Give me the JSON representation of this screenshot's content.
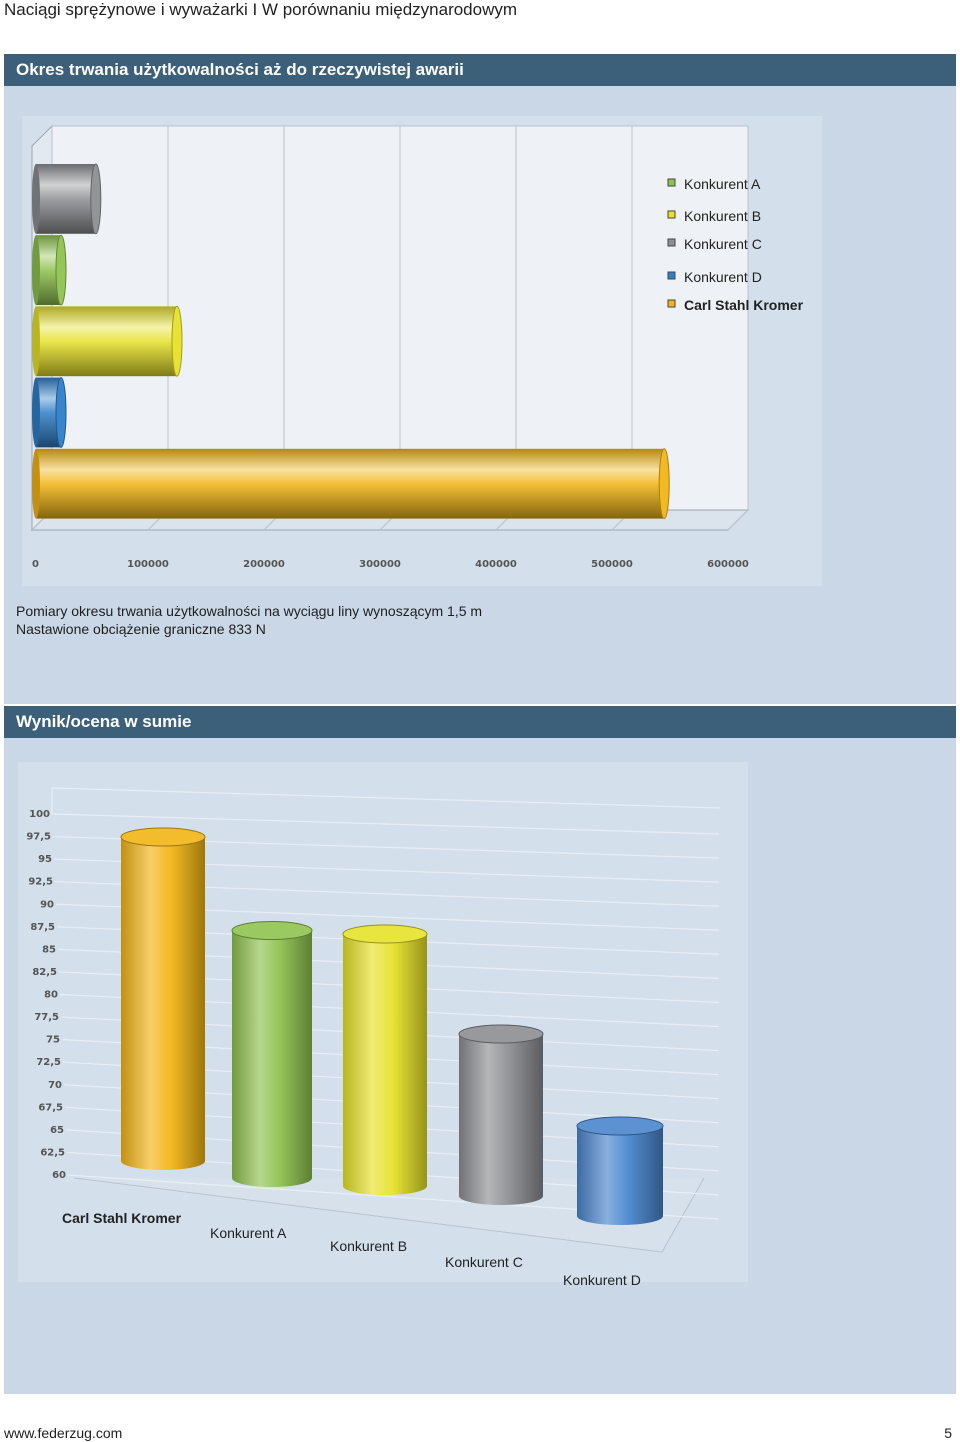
{
  "page": {
    "title": "Naciągi sprężynowe i wyważarki I W porównaniu międzynarodowym",
    "footer_url": "www.federzug.com",
    "page_number": "5"
  },
  "sections": [
    {
      "header": "Okres trwania użytkowalności aż do rzeczywistej awarii",
      "caption_lines": [
        "Pomiary okresu trwania użytkowalności na wyciągu liny wynoszącym 1,5 m",
        "Nastawione obciążenie graniczne 833 N"
      ]
    },
    {
      "header": "Wynik/ocena w sumie"
    }
  ],
  "chart_data": [
    {
      "type": "bar",
      "orientation": "horizontal",
      "categories": [
        "Konkurent C",
        "Konkurent A",
        "Konkurent B",
        "Konkurent D",
        "Carl Stahl Kromer"
      ],
      "values": [
        55000,
        25000,
        125000,
        25000,
        545000
      ],
      "colors": [
        "#8c8e92",
        "#8fc24f",
        "#e6e22a",
        "#2f7fc8",
        "#f2b515"
      ],
      "xlim": [
        0,
        600000
      ],
      "xticks": [
        "0",
        "100000",
        "200000",
        "300000",
        "400000",
        "500000",
        "600000"
      ],
      "legend": {
        "placement": "top-right",
        "entries": [
          {
            "label": "Konkurent A",
            "color": "#8fc24f",
            "bold": false
          },
          {
            "label": "Konkurent B",
            "color": "#e6e22a",
            "bold": false
          },
          {
            "label": "Konkurent C",
            "color": "#8c8e92",
            "bold": false
          },
          {
            "label": "Konkurent D",
            "color": "#2f7fc8",
            "bold": false
          },
          {
            "label": "Carl Stahl Kromer",
            "color": "#f2b515",
            "bold": true
          }
        ]
      },
      "grid": true
    },
    {
      "type": "bar",
      "orientation": "vertical",
      "categories": [
        "Carl Stahl Kromer",
        "Konkurent A",
        "Konkurent B",
        "Konkurent C",
        "Konkurent D"
      ],
      "values": [
        96,
        87.5,
        88,
        78,
        70
      ],
      "colors": [
        "#f2b515",
        "#8fc24f",
        "#e6e22a",
        "#8c8e92",
        "#4a86cc"
      ],
      "ylim": [
        60,
        100
      ],
      "yticks": [
        "100",
        "97,5",
        "95",
        "92,5",
        "90",
        "87,5",
        "85",
        "82,5",
        "80",
        "77,5",
        "75",
        "72,5",
        "70",
        "67,5",
        "65",
        "62,5",
        "60"
      ],
      "bold_category": "Carl Stahl Kromer",
      "grid": true
    }
  ]
}
